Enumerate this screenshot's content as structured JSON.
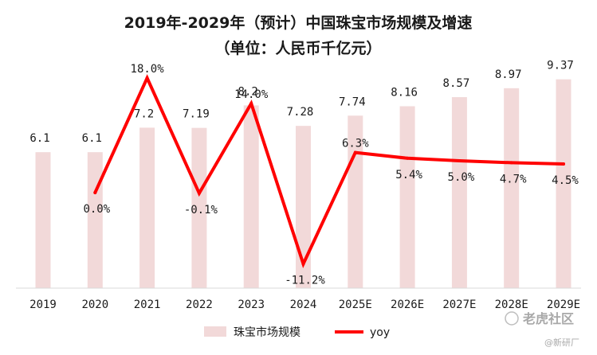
{
  "chart_data": {
    "type": "bar+line",
    "title": "2019年-2029年（预计）中国珠宝市场规模及增速",
    "subtitle": "（单位：人民币千亿元）",
    "categories": [
      "2019",
      "2020",
      "2021",
      "2022",
      "2023",
      "2024",
      "2025E",
      "2026E",
      "2027E",
      "2028E",
      "2029E"
    ],
    "series": [
      {
        "name": "珠宝市场规模",
        "type": "bar",
        "axis": "left",
        "values": [
          6.1,
          6.1,
          7.2,
          7.19,
          8.2,
          7.28,
          7.74,
          8.16,
          8.57,
          8.97,
          9.37
        ],
        "labels": [
          "6.1",
          "6.1",
          "7.2",
          "7.19",
          "8.2",
          "7.28",
          "7.74",
          "8.16",
          "8.57",
          "8.97",
          "9.37"
        ],
        "color": "#f2d9d9"
      },
      {
        "name": "yoy",
        "type": "line",
        "axis": "right",
        "values": [
          null,
          0.0,
          18.0,
          -0.1,
          14.0,
          -11.2,
          6.3,
          5.4,
          5.0,
          4.7,
          4.5
        ],
        "labels": [
          "",
          "0.0%",
          "18.0%",
          "-0.1%",
          "14.0%",
          "-11.2%",
          "6.3%",
          "5.4%",
          "5.0%",
          "4.7%",
          "4.5%"
        ],
        "color": "#ff0000"
      }
    ],
    "ylim_left": [
      0,
      10
    ],
    "ylim_right": [
      -15,
      20
    ],
    "legend": {
      "position": "bottom",
      "items": [
        "珠宝市场规模",
        "yoy"
      ]
    },
    "grid": false
  },
  "watermark": {
    "brand": "老虎社区",
    "author": "@新研厂"
  }
}
